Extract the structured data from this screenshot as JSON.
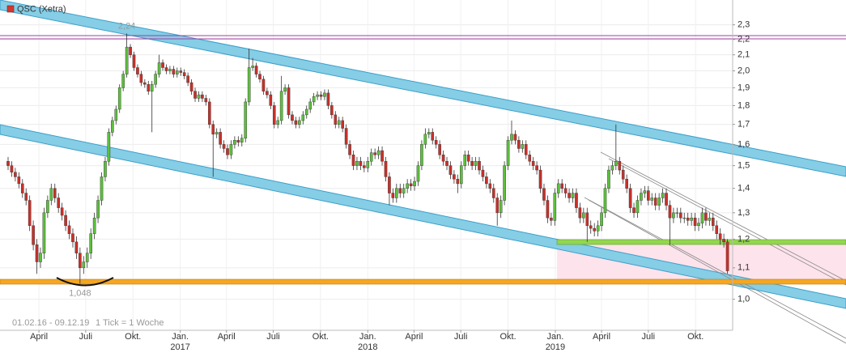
{
  "chart_data": {
    "type": "candlestick",
    "title": "QSC (Xetra)",
    "color": "#d03a30",
    "up_color": "#5cbf3c",
    "down_color": "#c8302a",
    "log_scale": true,
    "grid": true,
    "xlim": [
      "2016-02-01",
      "2019-12-09"
    ],
    "ylim": [
      0.91,
      2.48
    ],
    "yticks": [
      {
        "value": 1.0,
        "label": "1,0"
      },
      {
        "value": 1.1,
        "label": "1,1"
      },
      {
        "value": 1.2,
        "label": "1,2"
      },
      {
        "value": 1.3,
        "label": "1,3"
      },
      {
        "value": 1.4,
        "label": "1,4"
      },
      {
        "value": 1.5,
        "label": "1,5"
      },
      {
        "value": 1.6,
        "label": "1,6"
      },
      {
        "value": 1.7,
        "label": "1,7"
      },
      {
        "value": 1.8,
        "label": "1,8"
      },
      {
        "value": 1.9,
        "label": "1,9"
      },
      {
        "value": 2.0,
        "label": "2,0"
      },
      {
        "value": 2.1,
        "label": "2,1"
      },
      {
        "value": 2.2,
        "label": "2,2"
      },
      {
        "value": 2.3,
        "label": "2,3"
      }
    ],
    "xticks": [
      {
        "value": "2016-04-01",
        "label": "April"
      },
      {
        "value": "2016-07-01",
        "label": "Juli"
      },
      {
        "value": "2016-10-01",
        "label": "Okt."
      },
      {
        "value": "2017-01-01",
        "label": "Jan.",
        "year": "2017"
      },
      {
        "value": "2017-04-01",
        "label": "April"
      },
      {
        "value": "2017-07-01",
        "label": "Juli"
      },
      {
        "value": "2017-10-01",
        "label": "Okt."
      },
      {
        "value": "2018-01-01",
        "label": "Jan.",
        "year": "2018"
      },
      {
        "value": "2018-04-01",
        "label": "April"
      },
      {
        "value": "2018-07-01",
        "label": "Juli"
      },
      {
        "value": "2018-10-01",
        "label": "Okt."
      },
      {
        "value": "2019-01-01",
        "label": "Jan.",
        "year": "2019"
      },
      {
        "value": "2019-04-01",
        "label": "April"
      },
      {
        "value": "2019-07-01",
        "label": "Juli"
      },
      {
        "value": "2019-10-01",
        "label": "Okt."
      }
    ],
    "date_range": "01.02.16 - 09.12.19",
    "tick_note": "1 Tick = 1 Woche",
    "annotations": [
      {
        "value": 2.24,
        "label": "2,24",
        "index": 33
      },
      {
        "value": 1.048,
        "label": "1,048",
        "index": 20
      }
    ],
    "open": [
      1.52,
      1.5,
      1.47,
      1.45,
      1.42,
      1.38,
      1.35,
      1.25,
      1.18,
      1.12,
      1.15,
      1.3,
      1.35,
      1.4,
      1.36,
      1.32,
      1.29,
      1.25,
      1.22,
      1.19,
      1.15,
      1.1,
      1.12,
      1.15,
      1.22,
      1.28,
      1.35,
      1.45,
      1.52,
      1.66,
      1.72,
      1.78,
      1.9,
      1.98,
      2.15,
      2.1,
      2.02,
      1.98,
      1.93,
      1.92,
      1.88,
      1.92,
      1.98,
      2.05,
      2.02,
      2.0,
      2.01,
      1.98,
      2.0,
      1.99,
      1.97,
      1.93,
      1.88,
      1.84,
      1.86,
      1.84,
      1.82,
      1.7,
      1.65,
      1.66,
      1.6,
      1.58,
      1.55,
      1.6,
      1.62,
      1.61,
      1.63,
      1.82,
      2.02,
      2.03,
      1.98,
      1.95,
      1.88,
      1.86,
      1.8,
      1.7,
      1.72,
      1.88,
      1.9,
      1.75,
      1.72,
      1.7,
      1.72,
      1.75,
      1.78,
      1.82,
      1.85,
      1.86,
      1.85,
      1.87,
      1.8,
      1.75,
      1.7,
      1.72,
      1.68,
      1.6,
      1.55,
      1.5,
      1.52,
      1.5,
      1.49,
      1.52,
      1.56,
      1.55,
      1.57,
      1.52,
      1.45,
      1.38,
      1.36,
      1.4,
      1.38,
      1.4,
      1.42,
      1.41,
      1.43,
      1.5,
      1.6,
      1.65,
      1.66,
      1.62,
      1.6,
      1.55,
      1.52,
      1.5,
      1.46,
      1.44,
      1.42,
      1.5,
      1.55,
      1.52,
      1.5,
      1.52,
      1.48,
      1.45,
      1.42,
      1.4,
      1.36,
      1.3,
      1.35,
      1.5,
      1.62,
      1.65,
      1.62,
      1.58,
      1.6,
      1.55,
      1.52,
      1.5,
      1.48,
      1.4,
      1.35,
      1.28,
      1.27,
      1.38,
      1.42,
      1.4,
      1.38,
      1.36,
      1.38,
      1.32,
      1.28,
      1.3,
      1.25,
      1.24,
      1.23,
      1.25,
      1.3,
      1.4,
      1.48,
      1.5,
      1.52,
      1.48,
      1.44,
      1.4,
      1.32,
      1.3,
      1.35,
      1.38,
      1.39,
      1.35,
      1.36,
      1.33,
      1.36,
      1.38,
      1.33,
      1.28,
      1.3,
      1.3,
      1.28,
      1.28,
      1.27,
      1.28,
      1.25,
      1.26,
      1.3,
      1.27,
      1.28,
      1.25,
      1.22,
      1.2,
      1.19
    ],
    "high": [
      1.54,
      1.52,
      1.49,
      1.47,
      1.44,
      1.4,
      1.37,
      1.27,
      1.2,
      1.17,
      1.32,
      1.37,
      1.42,
      1.42,
      1.38,
      1.34,
      1.31,
      1.27,
      1.24,
      1.21,
      1.17,
      1.14,
      1.17,
      1.24,
      1.3,
      1.37,
      1.47,
      1.54,
      1.68,
      1.74,
      1.8,
      1.92,
      2.0,
      2.24,
      2.17,
      2.12,
      2.04,
      2.0,
      1.95,
      1.94,
      1.94,
      2.0,
      2.1,
      2.07,
      2.04,
      2.03,
      2.03,
      2.02,
      2.02,
      2.01,
      1.99,
      1.95,
      1.9,
      1.88,
      1.88,
      1.86,
      1.84,
      1.72,
      1.68,
      1.68,
      1.62,
      1.6,
      1.62,
      1.64,
      1.64,
      1.65,
      1.84,
      2.14,
      2.08,
      2.05,
      2.0,
      1.97,
      1.9,
      1.88,
      1.82,
      1.74,
      1.97,
      1.92,
      1.92,
      1.77,
      1.74,
      1.74,
      1.77,
      1.8,
      1.84,
      1.87,
      1.88,
      1.88,
      1.89,
      1.89,
      1.82,
      1.77,
      1.74,
      1.74,
      1.7,
      1.62,
      1.57,
      1.54,
      1.54,
      1.52,
      1.54,
      1.58,
      1.58,
      1.59,
      1.59,
      1.54,
      1.47,
      1.4,
      1.42,
      1.42,
      1.42,
      1.44,
      1.44,
      1.45,
      1.52,
      1.62,
      1.68,
      1.68,
      1.68,
      1.64,
      1.62,
      1.57,
      1.54,
      1.52,
      1.48,
      1.46,
      1.52,
      1.57,
      1.57,
      1.54,
      1.54,
      1.54,
      1.5,
      1.47,
      1.44,
      1.42,
      1.38,
      1.37,
      1.52,
      1.64,
      1.72,
      1.67,
      1.64,
      1.62,
      1.62,
      1.57,
      1.54,
      1.52,
      1.5,
      1.42,
      1.37,
      1.3,
      1.4,
      1.44,
      1.44,
      1.42,
      1.4,
      1.4,
      1.4,
      1.34,
      1.32,
      1.32,
      1.27,
      1.26,
      1.27,
      1.32,
      1.42,
      1.5,
      1.52,
      1.7,
      1.54,
      1.5,
      1.46,
      1.42,
      1.34,
      1.37,
      1.4,
      1.41,
      1.41,
      1.38,
      1.38,
      1.38,
      1.4,
      1.4,
      1.35,
      1.32,
      1.32,
      1.32,
      1.3,
      1.3,
      1.3,
      1.3,
      1.28,
      1.32,
      1.32,
      1.3,
      1.3,
      1.27,
      1.24,
      1.22,
      1.2
    ],
    "low": [
      1.48,
      1.45,
      1.43,
      1.4,
      1.36,
      1.33,
      1.23,
      1.16,
      1.08,
      1.1,
      1.13,
      1.28,
      1.33,
      1.34,
      1.3,
      1.27,
      1.23,
      1.2,
      1.17,
      1.13,
      1.048,
      1.08,
      1.1,
      1.13,
      1.2,
      1.26,
      1.33,
      1.43,
      1.5,
      1.64,
      1.7,
      1.76,
      1.88,
      1.96,
      2.08,
      2.0,
      1.96,
      1.91,
      1.9,
      1.86,
      1.66,
      1.9,
      1.96,
      2.0,
      1.98,
      1.98,
      1.96,
      1.96,
      1.97,
      1.95,
      1.91,
      1.86,
      1.82,
      1.82,
      1.82,
      1.8,
      1.68,
      1.45,
      1.63,
      1.58,
      1.56,
      1.53,
      1.53,
      1.58,
      1.59,
      1.59,
      1.61,
      1.8,
      2.0,
      1.96,
      1.93,
      1.86,
      1.84,
      1.78,
      1.68,
      1.68,
      1.7,
      1.86,
      1.73,
      1.7,
      1.68,
      1.68,
      1.7,
      1.73,
      1.76,
      1.8,
      1.83,
      1.83,
      1.83,
      1.78,
      1.73,
      1.68,
      1.68,
      1.66,
      1.58,
      1.53,
      1.48,
      1.48,
      1.48,
      1.47,
      1.47,
      1.5,
      1.53,
      1.53,
      1.5,
      1.43,
      1.33,
      1.34,
      1.34,
      1.36,
      1.36,
      1.38,
      1.39,
      1.39,
      1.41,
      1.48,
      1.58,
      1.63,
      1.6,
      1.58,
      1.53,
      1.5,
      1.48,
      1.44,
      1.42,
      1.38,
      1.4,
      1.48,
      1.5,
      1.48,
      1.48,
      1.46,
      1.43,
      1.4,
      1.38,
      1.34,
      1.25,
      1.28,
      1.33,
      1.48,
      1.6,
      1.6,
      1.56,
      1.56,
      1.53,
      1.5,
      1.48,
      1.46,
      1.38,
      1.33,
      1.26,
      1.25,
      1.25,
      1.36,
      1.38,
      1.36,
      1.34,
      1.34,
      1.3,
      1.26,
      1.26,
      1.19,
      1.22,
      1.21,
      1.21,
      1.23,
      1.28,
      1.38,
      1.46,
      1.48,
      1.46,
      1.42,
      1.38,
      1.3,
      1.28,
      1.28,
      1.33,
      1.36,
      1.33,
      1.33,
      1.31,
      1.31,
      1.34,
      1.31,
      1.18,
      1.26,
      1.28,
      1.26,
      1.26,
      1.25,
      1.25,
      1.23,
      1.23,
      1.24,
      1.25,
      1.25,
      1.23,
      1.2,
      1.18,
      1.17,
      1.08
    ],
    "close": [
      1.5,
      1.47,
      1.45,
      1.42,
      1.38,
      1.35,
      1.25,
      1.18,
      1.12,
      1.15,
      1.3,
      1.35,
      1.4,
      1.36,
      1.32,
      1.29,
      1.25,
      1.22,
      1.19,
      1.15,
      1.1,
      1.12,
      1.15,
      1.22,
      1.28,
      1.35,
      1.45,
      1.52,
      1.66,
      1.72,
      1.78,
      1.9,
      1.98,
      2.15,
      2.1,
      2.02,
      1.98,
      1.93,
      1.92,
      1.88,
      1.92,
      1.98,
      2.05,
      2.02,
      2.0,
      2.01,
      1.98,
      2.0,
      1.99,
      1.97,
      1.93,
      1.88,
      1.84,
      1.86,
      1.84,
      1.82,
      1.7,
      1.65,
      1.66,
      1.6,
      1.58,
      1.55,
      1.6,
      1.62,
      1.61,
      1.63,
      1.82,
      2.02,
      2.03,
      1.98,
      1.95,
      1.88,
      1.86,
      1.8,
      1.7,
      1.72,
      1.88,
      1.9,
      1.75,
      1.72,
      1.7,
      1.72,
      1.75,
      1.78,
      1.82,
      1.85,
      1.86,
      1.85,
      1.87,
      1.8,
      1.75,
      1.7,
      1.72,
      1.68,
      1.6,
      1.55,
      1.5,
      1.52,
      1.5,
      1.49,
      1.52,
      1.56,
      1.55,
      1.57,
      1.52,
      1.45,
      1.38,
      1.36,
      1.4,
      1.38,
      1.4,
      1.42,
      1.41,
      1.43,
      1.5,
      1.6,
      1.65,
      1.66,
      1.62,
      1.6,
      1.55,
      1.52,
      1.5,
      1.46,
      1.44,
      1.42,
      1.5,
      1.55,
      1.52,
      1.5,
      1.52,
      1.48,
      1.45,
      1.42,
      1.4,
      1.36,
      1.3,
      1.35,
      1.5,
      1.62,
      1.65,
      1.62,
      1.58,
      1.6,
      1.55,
      1.52,
      1.5,
      1.48,
      1.4,
      1.35,
      1.28,
      1.27,
      1.38,
      1.42,
      1.4,
      1.38,
      1.36,
      1.38,
      1.32,
      1.28,
      1.3,
      1.25,
      1.24,
      1.23,
      1.25,
      1.3,
      1.4,
      1.48,
      1.5,
      1.52,
      1.48,
      1.44,
      1.4,
      1.32,
      1.3,
      1.35,
      1.38,
      1.39,
      1.35,
      1.36,
      1.33,
      1.36,
      1.38,
      1.33,
      1.28,
      1.3,
      1.3,
      1.28,
      1.28,
      1.27,
      1.28,
      1.25,
      1.26,
      1.3,
      1.27,
      1.28,
      1.25,
      1.22,
      1.2,
      1.19,
      1.09
    ]
  }
}
